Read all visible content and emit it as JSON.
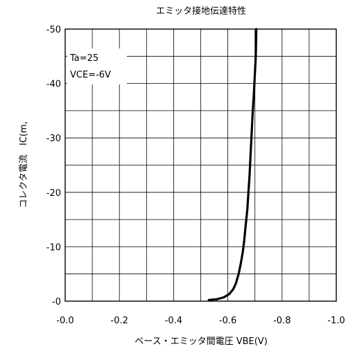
{
  "chart_data": {
    "type": "line",
    "title": "エミッタ接地伝達特性",
    "xlabel": "ベース・エミッタ間電圧 VBE(V)",
    "ylabel": "コレクタ電流　IC(mA)",
    "ylabel_visible": "コレクタ電流　IC(m,",
    "xlim": [
      0.0,
      -1.0
    ],
    "ylim": [
      0,
      -50
    ],
    "x_ticks": [
      0.0,
      -0.1,
      -0.2,
      -0.3,
      -0.4,
      -0.5,
      -0.6,
      -0.7,
      -0.8,
      -0.9,
      -1.0
    ],
    "x_tick_labels": [
      "-0.0",
      "",
      "-0.2",
      "",
      "-0.4",
      "",
      "-0.6",
      "",
      "-0.8",
      "",
      "-1.0"
    ],
    "y_ticks": [
      0,
      -5,
      -10,
      -15,
      -20,
      -25,
      -30,
      -35,
      -40,
      -45,
      -50
    ],
    "y_tick_labels": [
      "-0",
      "",
      "-10",
      "",
      "-20",
      "",
      "-30",
      "",
      "-40",
      "",
      "-50"
    ],
    "grid": true,
    "annotations": [
      "Ta=25",
      "VCE=-6V"
    ],
    "series": [
      {
        "color": "#000000",
        "x": [
          -0.53,
          -0.56,
          -0.585,
          -0.605,
          -0.62,
          -0.63,
          -0.64,
          -0.648,
          -0.655,
          -0.66,
          -0.666,
          -0.672,
          -0.676,
          -0.68,
          -0.684,
          -0.688,
          -0.692,
          -0.696,
          -0.699,
          -0.703,
          -0.705
        ],
        "y": [
          -0.2,
          -0.35,
          -0.7,
          -1.3,
          -2.2,
          -3.3,
          -5,
          -7,
          -9,
          -11,
          -14,
          -17,
          -20,
          -23,
          -27,
          -31,
          -35,
          -38,
          -41,
          -45,
          -50
        ]
      }
    ]
  }
}
